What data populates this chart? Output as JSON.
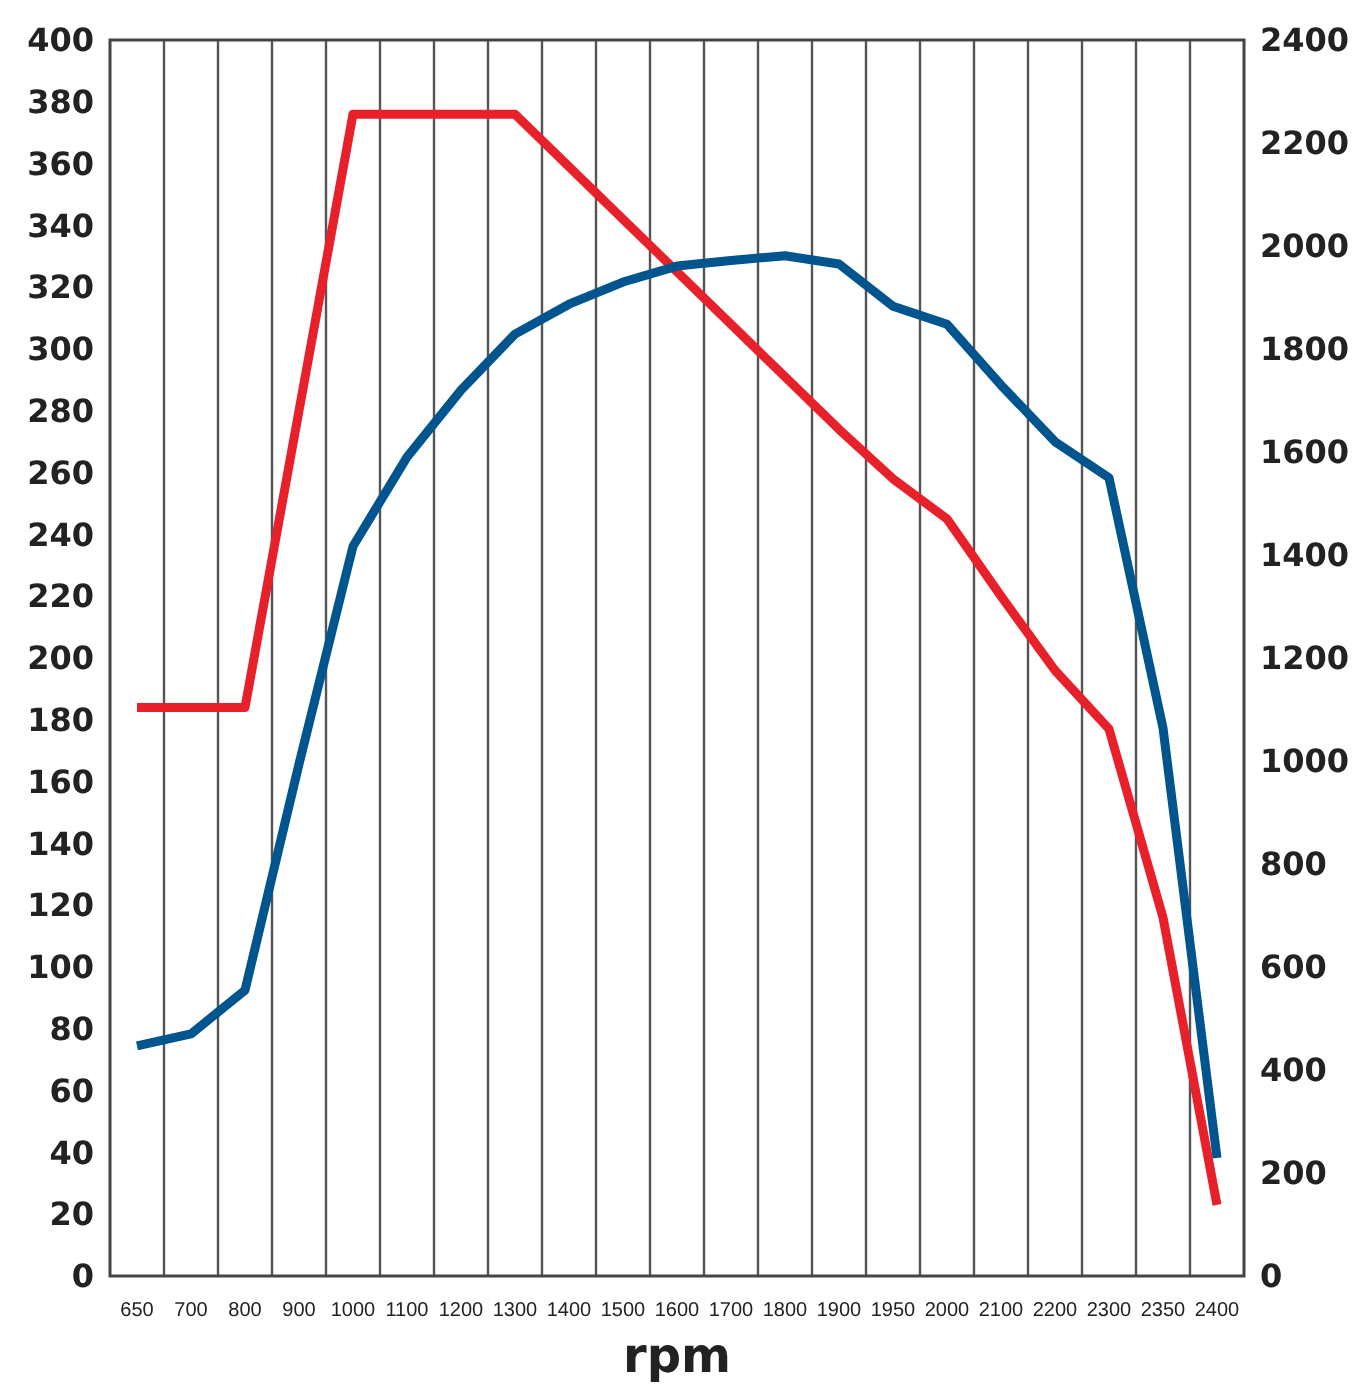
{
  "chart_data": {
    "type": "line",
    "xlabel": "rpm",
    "categories": [
      "650",
      "700",
      "800",
      "900",
      "1000",
      "1100",
      "1200",
      "1300",
      "1400",
      "1500",
      "1600",
      "1700",
      "1800",
      "1900",
      "1950",
      "2000",
      "2100",
      "2200",
      "2300",
      "2350",
      "2400"
    ],
    "series": [
      {
        "color": "#e8202a",
        "values": [
          184,
          184,
          184,
          280,
          376,
          376,
          376,
          376,
          359,
          342,
          325,
          308,
          291,
          274,
          258,
          245,
          220,
          196,
          177,
          116,
          23
        ]
      },
      {
        "color": "#00558f",
        "axis": "y2",
        "values": [
          447,
          470,
          555,
          994,
          1417,
          1590,
          1720,
          1829,
          1887,
          1930,
          1961,
          1972,
          1981,
          1965,
          1883,
          1848,
          1730,
          1620,
          1550,
          1064,
          229
        ]
      }
    ],
    "ylim": [
      0,
      400
    ],
    "yticks": [
      0,
      20,
      40,
      60,
      80,
      100,
      120,
      140,
      160,
      180,
      200,
      220,
      240,
      260,
      280,
      300,
      320,
      340,
      360,
      380,
      400
    ],
    "y2lim": [
      0,
      2400
    ],
    "y2ticks": [
      0,
      200,
      400,
      600,
      800,
      1000,
      1200,
      1400,
      1600,
      1800,
      2000,
      2200,
      2400
    ],
    "grid": "x"
  }
}
